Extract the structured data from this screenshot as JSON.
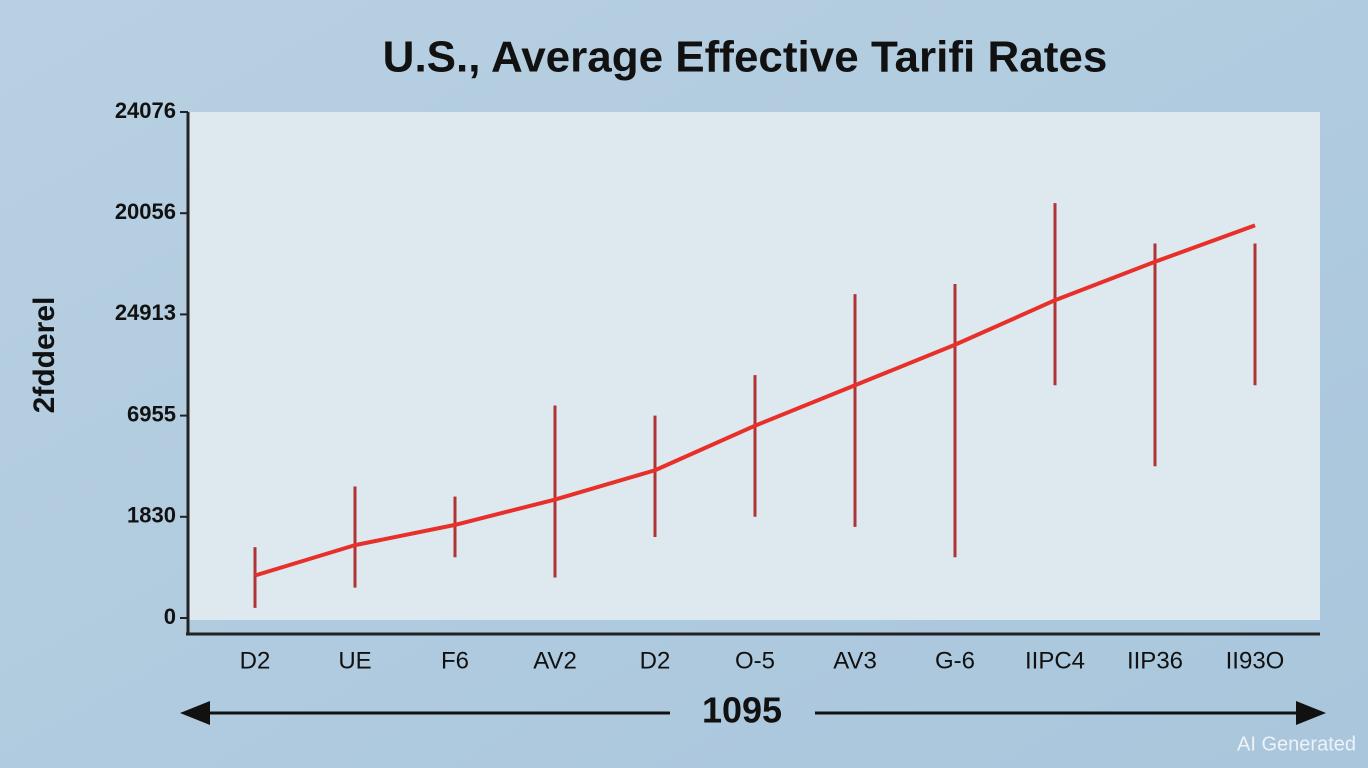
{
  "chart_data": {
    "type": "line",
    "title": "U.S., Average Effective Tarifi Rates",
    "y_label": "2fdderel",
    "x_label": "1095",
    "watermark": "AI Generated",
    "categories": [
      "D2",
      "UE",
      "F6",
      "AV2",
      "D2",
      "O-5",
      "AV3",
      "G-6",
      "IIPC4",
      "IIP36",
      "II93O"
    ],
    "line": {
      "color": "#e8302a",
      "values": [
        0.42,
        0.72,
        0.92,
        1.17,
        1.46,
        1.9,
        2.3,
        2.7,
        3.14,
        3.52,
        3.88
      ]
    },
    "spikes": {
      "color": "#b03434",
      "low": [
        0.1,
        0.3,
        0.6,
        0.4,
        0.8,
        1.0,
        0.9,
        0.6,
        2.3,
        1.5,
        2.3
      ],
      "high": [
        0.7,
        1.3,
        1.2,
        2.1,
        2.0,
        2.4,
        3.2,
        3.3,
        4.1,
        3.7,
        3.7
      ]
    },
    "ylim": [
      0,
      5
    ],
    "yticks": [
      0,
      {
        "value": 1,
        "label": "1830"
      },
      {
        "value": 2,
        "label": "6955"
      },
      {
        "value": 3,
        "label": "24913"
      },
      {
        "value": 4,
        "label": "20056"
      },
      {
        "value": 5,
        "label": "24076"
      }
    ],
    "grid": false
  }
}
